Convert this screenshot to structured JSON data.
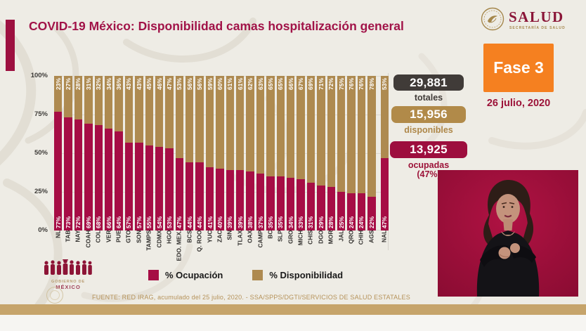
{
  "header": {
    "title": "COVID-19 México: Disponibilidad camas hospitalización general",
    "salud_logo": {
      "word": "SALUD",
      "subtitle": "SECRETARÍA DE SALUD"
    },
    "phase_badge": "Fase 3",
    "date": "26 julio, 2020"
  },
  "stats": {
    "totales": {
      "value": "29,881",
      "label": "totales",
      "color": "#403b38"
    },
    "disponibles": {
      "value": "15,956",
      "label": "disponibles",
      "color": "#b18a49"
    },
    "ocupadas": {
      "value": "13,925",
      "label": "ocupadas",
      "sublabel": "(47%)",
      "color": "#9d0e3e"
    }
  },
  "chart_data": {
    "type": "bar",
    "stacked": true,
    "categories": [
      "NL",
      "TAB",
      "NAY",
      "COAH",
      "COL",
      "VER",
      "PUE",
      "GTO",
      "SON",
      "TAMPS",
      "CDMX",
      "HGO",
      "EDO. MEX.",
      "BCS",
      "Q. ROO",
      "YUC",
      "ZAC",
      "SIN",
      "TLAX",
      "OAX",
      "CAMP",
      "BC",
      "SLP",
      "GRO",
      "MICH",
      "CHIS",
      "DGO",
      "MOR",
      "JAL",
      "QRO",
      "CHIH",
      "AGS",
      "NAL"
    ],
    "series": [
      {
        "name": "% Ocupación",
        "color": "#a60d45",
        "values": [
          77,
          73,
          72,
          69,
          68,
          66,
          64,
          57,
          57,
          55,
          54,
          53,
          47,
          44,
          44,
          41,
          40,
          39,
          39,
          38,
          37,
          35,
          35,
          34,
          33,
          31,
          29,
          28,
          25,
          24,
          24,
          22,
          47
        ]
      },
      {
        "name": "% Disponibilidad",
        "color": "#ae8a50",
        "values": [
          23,
          27,
          28,
          31,
          32,
          34,
          36,
          43,
          43,
          45,
          46,
          47,
          53,
          56,
          56,
          59,
          60,
          61,
          61,
          62,
          63,
          65,
          65,
          66,
          67,
          69,
          71,
          72,
          75,
          76,
          76,
          78,
          53
        ]
      }
    ],
    "y_ticks": [
      "100%",
      "75%",
      "50%",
      "25%",
      "0%"
    ],
    "ylim": [
      0,
      100
    ],
    "grid": true,
    "legend_position": "bottom",
    "value_labels": "inside-rotated"
  },
  "footer": {
    "source": "FUENTE: RED IRAG, acumulado del 25 julio, 2020. - SSA/SPPS/DGTI/SERVICIOS DE SALUD ESTATALES"
  },
  "gobierno_logo": {
    "line1": "GOBIERNO DE",
    "line2": "MÉXICO"
  }
}
